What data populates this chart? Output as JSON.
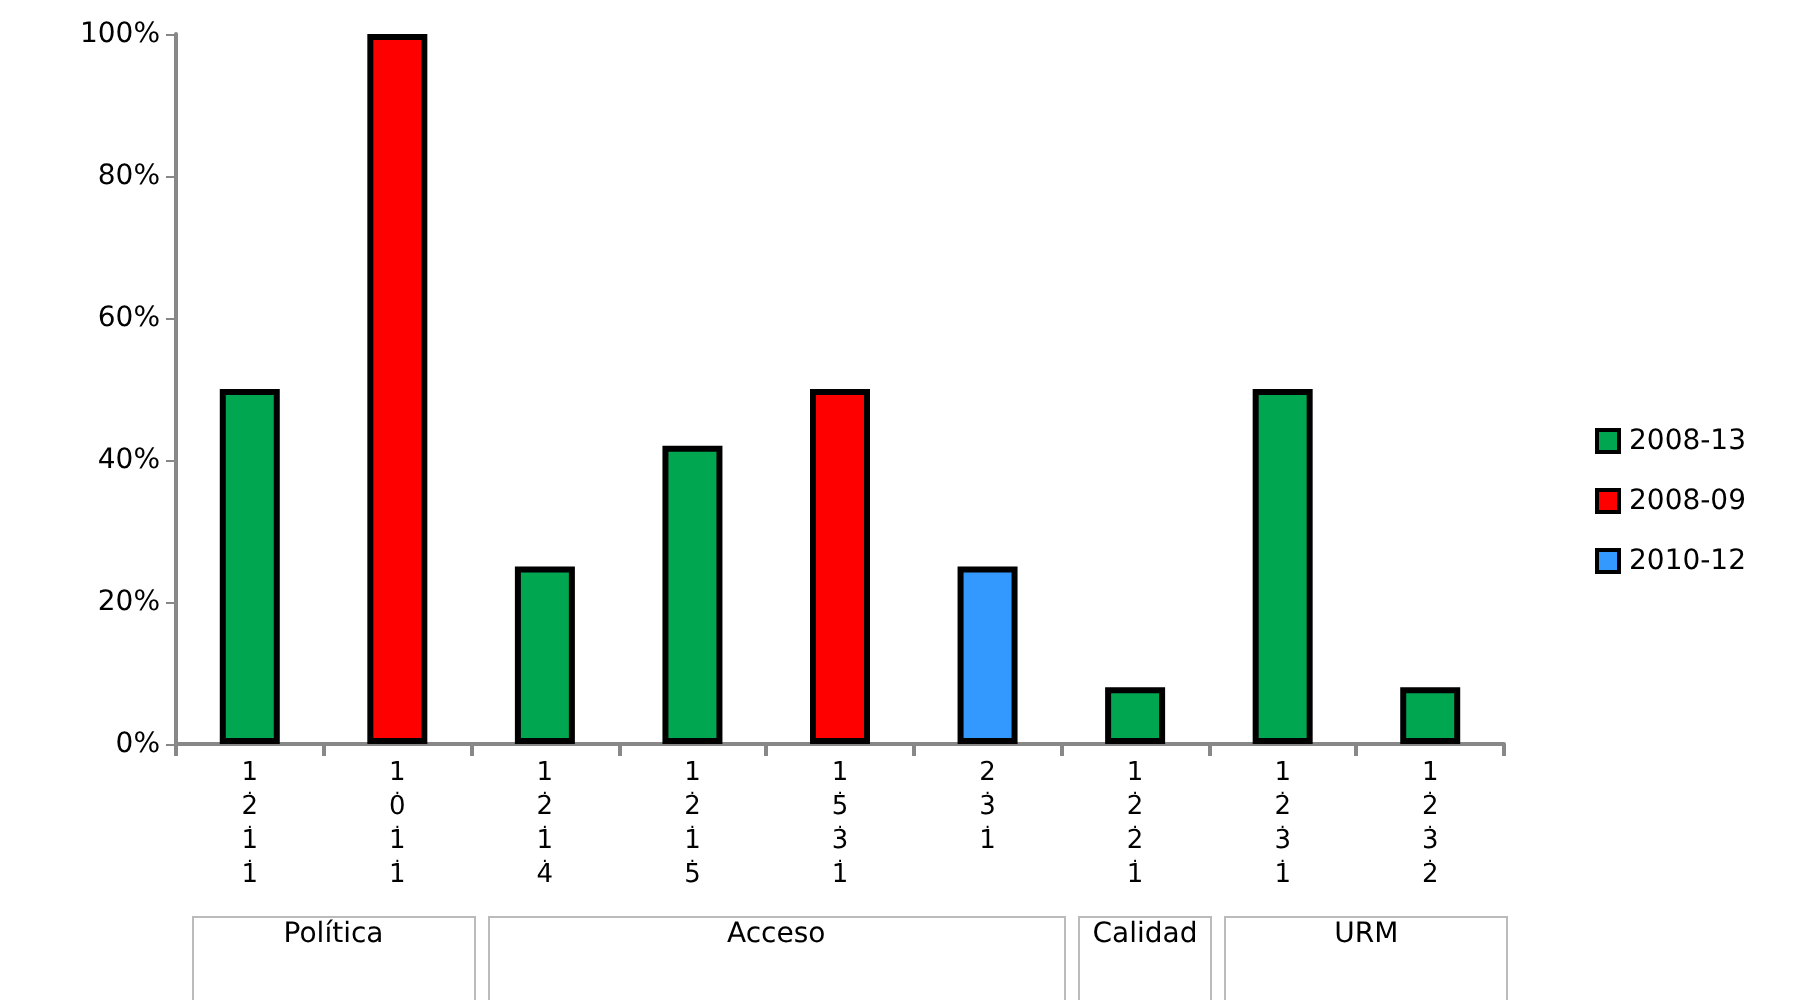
{
  "chart_data": {
    "type": "bar",
    "categories": [
      "1.2.1.1",
      "1.0.1.1",
      "1.2.1.4",
      "1.2.1.5",
      "1.5.3.1",
      "2.3.1",
      "1.2.2.1",
      "1.2.3.1",
      "1.2.3.2"
    ],
    "series": [
      {
        "name": "2008-13",
        "color": "#00a650",
        "values": [
          50,
          null,
          25,
          42,
          null,
          null,
          8,
          50,
          8
        ]
      },
      {
        "name": "2008-09",
        "color": "#ff0000",
        "values": [
          null,
          100,
          null,
          null,
          50,
          null,
          null,
          null,
          null
        ]
      },
      {
        "name": "2010-12",
        "color": "#3399ff",
        "values": [
          null,
          null,
          null,
          null,
          null,
          25,
          null,
          null,
          null
        ]
      }
    ],
    "ylim": [
      0,
      100
    ],
    "yticks": [
      {
        "value": 0,
        "label": "0%"
      },
      {
        "value": 20,
        "label": "20%"
      },
      {
        "value": 40,
        "label": "40%"
      },
      {
        "value": 60,
        "label": "60%"
      },
      {
        "value": 80,
        "label": "80%"
      },
      {
        "value": 100,
        "label": "100%"
      }
    ],
    "annotations": [
      "Política",
      "Acceso",
      "Calidad",
      "URM"
    ],
    "grid": false,
    "legend": "right"
  }
}
